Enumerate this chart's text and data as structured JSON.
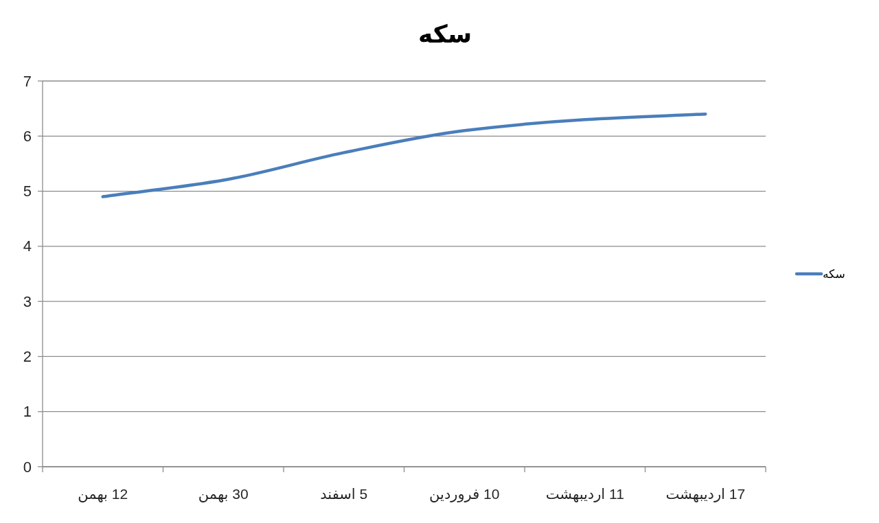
{
  "chart_data": {
    "type": "line",
    "title": "سکه",
    "categories": [
      "12 بهمن",
      "30 بهمن",
      "5 اسفند",
      "10 فروردین",
      "11 اردیبهشت",
      "17 اردیبهشت"
    ],
    "series": [
      {
        "name": "سکه",
        "color": "#4a7ebb",
        "values": [
          4.9,
          5.2,
          5.7,
          6.1,
          6.3,
          6.4
        ]
      }
    ],
    "ylim": [
      0,
      7
    ],
    "yticks": [
      0,
      1,
      2,
      3,
      4,
      5,
      6,
      7
    ],
    "grid": "y",
    "legend": "right"
  }
}
